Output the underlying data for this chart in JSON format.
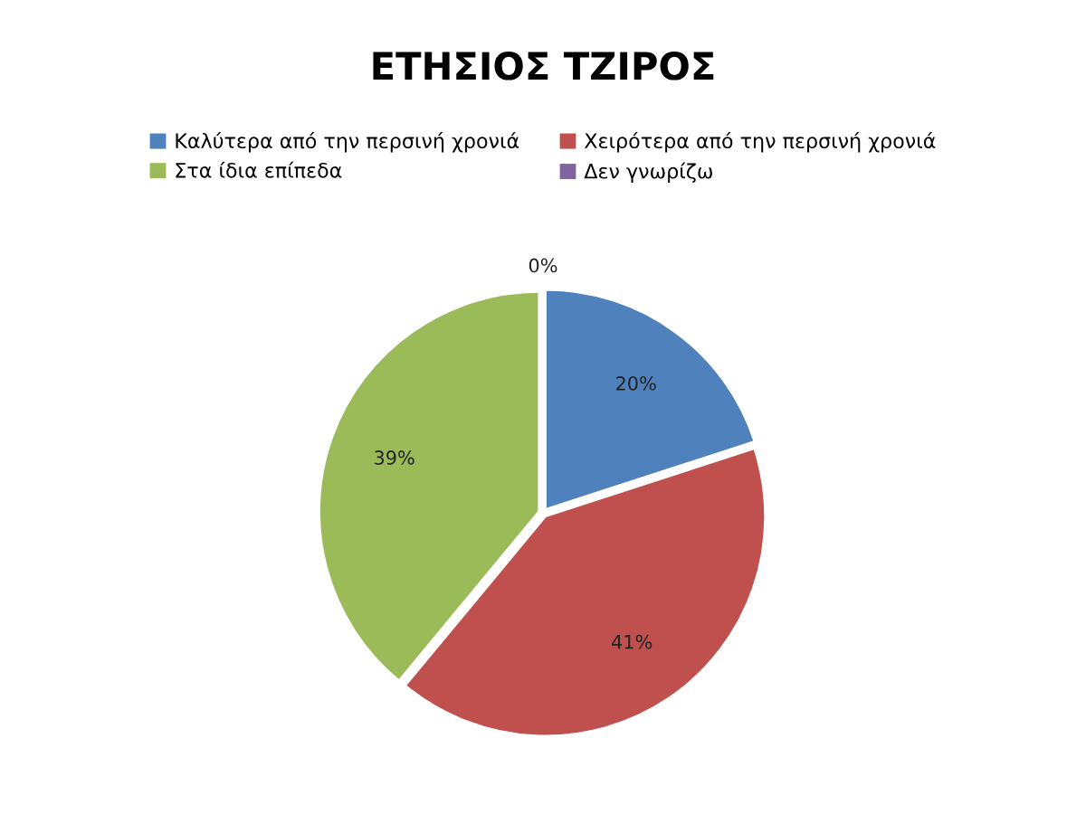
{
  "chart_data": {
    "type": "pie",
    "title": "ΕΤΗΣΙΟΣ ΤΖΙΡΟΣ",
    "categories": [
      "Καλύτερα από την περσινή χρονιά",
      "Χειρότερα από την περσινή χρονιά",
      "Στα ίδια επίπεδα",
      "Δεν γνωρίζω"
    ],
    "values": [
      20,
      41,
      39,
      0
    ],
    "colors": [
      "#4f81bd",
      "#c0504d",
      "#9bbb59",
      "#8064a2"
    ],
    "value_labels": [
      "20%",
      "41%",
      "39%",
      "0%"
    ],
    "legend": "top"
  }
}
